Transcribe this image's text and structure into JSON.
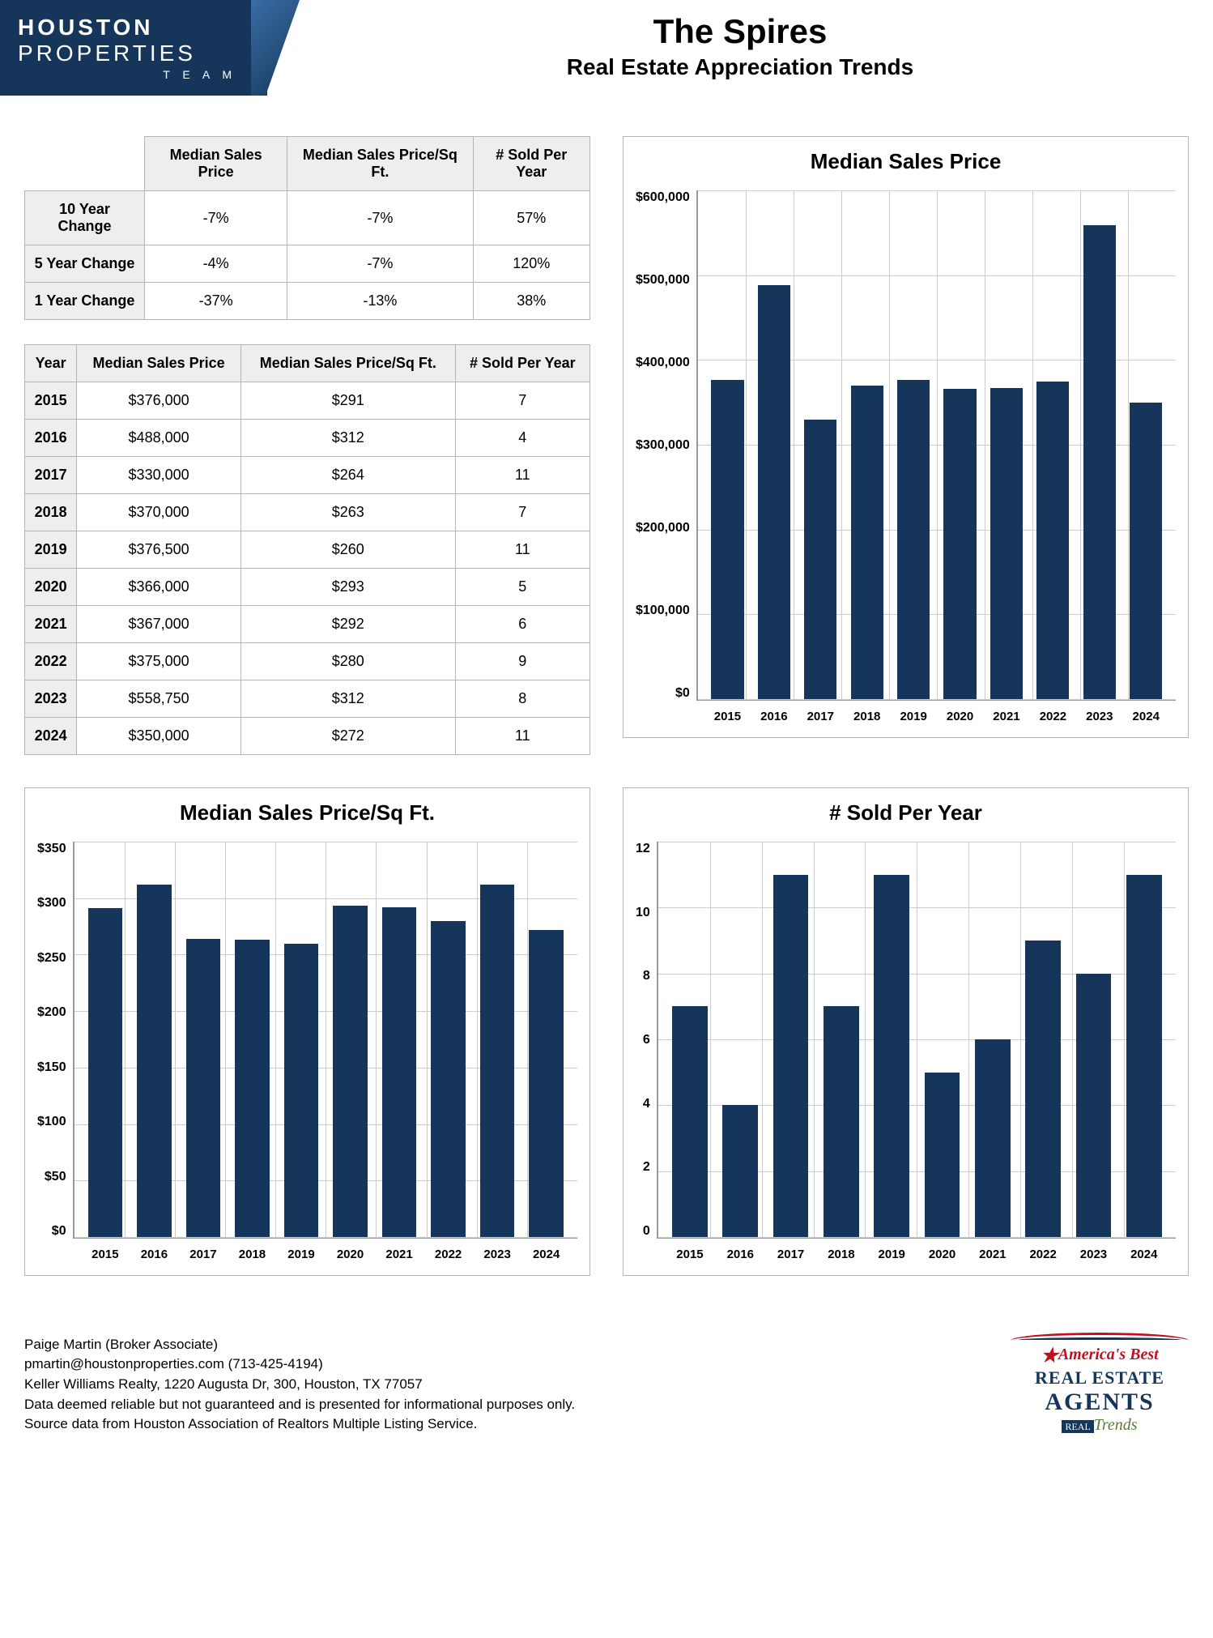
{
  "logo": {
    "line1": "HOUSTON",
    "line2": "PROPERTIES",
    "team": "T E A M"
  },
  "title": {
    "main": "The Spires",
    "sub": "Real Estate Appreciation Trends"
  },
  "columns": {
    "c1": "Median Sales Price",
    "c2": "Median Sales Price/Sq Ft.",
    "c3": "# Sold Per Year",
    "year": "Year"
  },
  "change_table": {
    "rows": [
      {
        "label": "10 Year Change",
        "c1": "-7%",
        "c2": "-7%",
        "c3": "57%"
      },
      {
        "label": "5 Year Change",
        "c1": "-4%",
        "c2": "-7%",
        "c3": "120%"
      },
      {
        "label": "1 Year Change",
        "c1": "-37%",
        "c2": "-13%",
        "c3": "38%"
      }
    ]
  },
  "year_table": {
    "rows": [
      {
        "year": "2015",
        "price": "$376,000",
        "psf": "$291",
        "sold": "7"
      },
      {
        "year": "2016",
        "price": "$488,000",
        "psf": "$312",
        "sold": "4"
      },
      {
        "year": "2017",
        "price": "$330,000",
        "psf": "$264",
        "sold": "11"
      },
      {
        "year": "2018",
        "price": "$370,000",
        "psf": "$263",
        "sold": "7"
      },
      {
        "year": "2019",
        "price": "$376,500",
        "psf": "$260",
        "sold": "11"
      },
      {
        "year": "2020",
        "price": "$366,000",
        "psf": "$293",
        "sold": "5"
      },
      {
        "year": "2021",
        "price": "$367,000",
        "psf": "$292",
        "sold": "6"
      },
      {
        "year": "2022",
        "price": "$375,000",
        "psf": "$280",
        "sold": "9"
      },
      {
        "year": "2023",
        "price": "$558,750",
        "psf": "$312",
        "sold": "8"
      },
      {
        "year": "2024",
        "price": "$350,000",
        "psf": "$272",
        "sold": "11"
      }
    ]
  },
  "chart_price": {
    "title": "Median Sales Price",
    "type": "bar",
    "bar_color": "#15365a",
    "grid_color": "#cccccc",
    "background_color": "#ffffff",
    "ymin": 0,
    "ymax": 600000,
    "ystep": 100000,
    "ylabels": [
      "$600,000",
      "$500,000",
      "$400,000",
      "$300,000",
      "$200,000",
      "$100,000",
      "$0"
    ],
    "categories": [
      "2015",
      "2016",
      "2017",
      "2018",
      "2019",
      "2020",
      "2021",
      "2022",
      "2023",
      "2024"
    ],
    "values": [
      376000,
      488000,
      330000,
      370000,
      376500,
      366000,
      367000,
      375000,
      558750,
      350000
    ]
  },
  "chart_psf": {
    "title": "Median Sales Price/Sq Ft.",
    "type": "bar",
    "bar_color": "#15365a",
    "grid_color": "#cccccc",
    "ymin": 0,
    "ymax": 350,
    "ystep": 50,
    "ylabels": [
      "$350",
      "$300",
      "$250",
      "$200",
      "$150",
      "$100",
      "$50",
      "$0"
    ],
    "categories": [
      "2015",
      "2016",
      "2017",
      "2018",
      "2019",
      "2020",
      "2021",
      "2022",
      "2023",
      "2024"
    ],
    "values": [
      291,
      312,
      264,
      263,
      260,
      293,
      292,
      280,
      312,
      272
    ]
  },
  "chart_sold": {
    "title": "# Sold Per Year",
    "type": "bar",
    "bar_color": "#15365a",
    "grid_color": "#cccccc",
    "ymin": 0,
    "ymax": 12,
    "ystep": 2,
    "ylabels": [
      "12",
      "10",
      "8",
      "6",
      "4",
      "2",
      "0"
    ],
    "categories": [
      "2015",
      "2016",
      "2017",
      "2018",
      "2019",
      "2020",
      "2021",
      "2022",
      "2023",
      "2024"
    ],
    "values": [
      7,
      4,
      11,
      7,
      11,
      5,
      6,
      9,
      8,
      11
    ]
  },
  "footer": {
    "l1": "Paige Martin (Broker Associate)",
    "l2": "pmartin@houstonproperties.com (713-425-4194)",
    "l3": "Keller Williams Realty, 1220 Augusta Dr, 300, Houston, TX 77057",
    "l4": "Data deemed reliable but not guaranteed and is presented for informational purposes only.",
    "l5": "Source data from Houston Association of Realtors Multiple Listing Service."
  },
  "badge": {
    "l1": "America's Best",
    "l2": "REAL ESTATE",
    "l3": "AGENTS",
    "real": "REAL",
    "trends": "Trends"
  }
}
